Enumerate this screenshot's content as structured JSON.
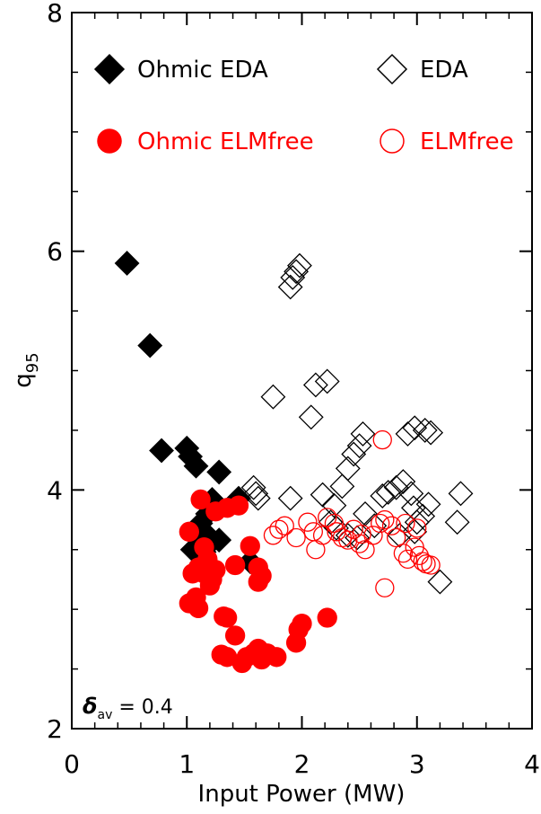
{
  "chart_data": {
    "type": "scatter",
    "title": "",
    "xlabel": "Input Power (MW)",
    "ylabel": "q",
    "ylabel_subscript": "95",
    "xlim": [
      0,
      4
    ],
    "ylim": [
      2,
      8
    ],
    "xticks": [
      0,
      1,
      2,
      3,
      4
    ],
    "yticks": [
      2,
      4,
      6,
      8
    ],
    "x_tick_labels": [
      "0",
      "1",
      "2",
      "3",
      "4"
    ],
    "y_tick_labels": [
      "2",
      "4",
      "6",
      "8"
    ],
    "grid": false,
    "legend_position": "top",
    "annotation": {
      "symbol": "δ",
      "subscript": "av",
      "text": " = 0.4"
    },
    "series": [
      {
        "name": "Ohmic EDA",
        "marker": "diamond",
        "filled": true,
        "color": "#000000",
        "points": [
          [
            0.48,
            5.9
          ],
          [
            0.68,
            5.21
          ],
          [
            0.78,
            4.33
          ],
          [
            1.0,
            4.35
          ],
          [
            1.03,
            4.28
          ],
          [
            1.08,
            4.2
          ],
          [
            1.28,
            4.15
          ],
          [
            1.45,
            3.93
          ],
          [
            1.22,
            3.92
          ],
          [
            1.18,
            3.8
          ],
          [
            1.12,
            3.72
          ],
          [
            1.15,
            3.65
          ],
          [
            1.1,
            3.6
          ],
          [
            1.2,
            3.55
          ],
          [
            1.28,
            3.58
          ],
          [
            1.05,
            3.5
          ],
          [
            1.15,
            3.48
          ],
          [
            1.55,
            3.4
          ]
        ]
      },
      {
        "name": "EDA",
        "marker": "diamond",
        "filled": false,
        "color": "#000000",
        "points": [
          [
            1.9,
            5.7
          ],
          [
            1.92,
            5.78
          ],
          [
            1.95,
            5.83
          ],
          [
            1.98,
            5.88
          ],
          [
            1.75,
            4.78
          ],
          [
            2.08,
            4.61
          ],
          [
            2.12,
            4.88
          ],
          [
            2.22,
            4.91
          ],
          [
            1.58,
            4.02
          ],
          [
            1.6,
            3.97
          ],
          [
            1.62,
            3.93
          ],
          [
            1.9,
            3.93
          ],
          [
            2.18,
            3.96
          ],
          [
            2.28,
            3.87
          ],
          [
            2.35,
            4.03
          ],
          [
            2.4,
            4.18
          ],
          [
            2.45,
            4.3
          ],
          [
            2.5,
            4.37
          ],
          [
            2.53,
            4.47
          ],
          [
            2.55,
            3.8
          ],
          [
            2.63,
            3.7
          ],
          [
            2.7,
            3.95
          ],
          [
            2.75,
            3.98
          ],
          [
            2.82,
            4.02
          ],
          [
            2.88,
            4.07
          ],
          [
            2.95,
            3.97
          ],
          [
            2.97,
            3.85
          ],
          [
            3.0,
            3.73
          ],
          [
            3.05,
            3.78
          ],
          [
            3.1,
            3.88
          ],
          [
            2.92,
            4.47
          ],
          [
            2.98,
            4.52
          ],
          [
            3.07,
            4.5
          ],
          [
            3.12,
            4.48
          ],
          [
            2.25,
            3.73
          ],
          [
            2.3,
            3.68
          ],
          [
            2.4,
            3.62
          ],
          [
            2.48,
            3.6
          ],
          [
            2.85,
            3.62
          ],
          [
            2.98,
            3.65
          ],
          [
            3.2,
            3.23
          ],
          [
            3.38,
            3.97
          ],
          [
            3.35,
            3.73
          ]
        ]
      },
      {
        "name": "Ohmic ELMfree",
        "marker": "circle",
        "filled": true,
        "color": "#ff0000",
        "points": [
          [
            1.02,
            3.65
          ],
          [
            1.12,
            3.92
          ],
          [
            1.25,
            3.82
          ],
          [
            1.35,
            3.85
          ],
          [
            1.45,
            3.87
          ],
          [
            1.55,
            3.53
          ],
          [
            1.62,
            3.35
          ],
          [
            1.62,
            3.23
          ],
          [
            1.65,
            3.28
          ],
          [
            1.15,
            3.52
          ],
          [
            1.18,
            3.42
          ],
          [
            1.1,
            3.35
          ],
          [
            1.15,
            3.3
          ],
          [
            1.22,
            3.25
          ],
          [
            1.25,
            3.33
          ],
          [
            1.2,
            3.2
          ],
          [
            1.05,
            3.3
          ],
          [
            1.02,
            3.05
          ],
          [
            1.08,
            3.1
          ],
          [
            1.1,
            3.01
          ],
          [
            1.35,
            2.93
          ],
          [
            1.32,
            2.94
          ],
          [
            1.42,
            2.78
          ],
          [
            1.3,
            2.62
          ],
          [
            1.35,
            2.6
          ],
          [
            1.48,
            2.55
          ],
          [
            1.52,
            2.6
          ],
          [
            1.58,
            2.63
          ],
          [
            1.62,
            2.67
          ],
          [
            1.65,
            2.58
          ],
          [
            1.7,
            2.63
          ],
          [
            1.78,
            2.6
          ],
          [
            1.97,
            2.83
          ],
          [
            2.0,
            2.88
          ],
          [
            2.22,
            2.93
          ],
          [
            1.95,
            2.72
          ],
          [
            1.42,
            3.37
          ]
        ]
      },
      {
        "name": "ELMfree",
        "marker": "circle",
        "filled": false,
        "color": "#ff0000",
        "points": [
          [
            1.75,
            3.62
          ],
          [
            1.8,
            3.67
          ],
          [
            1.85,
            3.7
          ],
          [
            1.95,
            3.6
          ],
          [
            2.05,
            3.73
          ],
          [
            2.1,
            3.65
          ],
          [
            2.12,
            3.5
          ],
          [
            2.18,
            3.62
          ],
          [
            2.22,
            3.77
          ],
          [
            2.28,
            3.72
          ],
          [
            2.3,
            3.65
          ],
          [
            2.35,
            3.6
          ],
          [
            2.4,
            3.58
          ],
          [
            2.45,
            3.67
          ],
          [
            2.5,
            3.55
          ],
          [
            2.55,
            3.5
          ],
          [
            2.62,
            3.62
          ],
          [
            2.68,
            3.72
          ],
          [
            2.72,
            3.75
          ],
          [
            2.78,
            3.7
          ],
          [
            2.82,
            3.6
          ],
          [
            2.88,
            3.47
          ],
          [
            2.92,
            3.42
          ],
          [
            2.98,
            3.52
          ],
          [
            3.02,
            3.45
          ],
          [
            3.05,
            3.4
          ],
          [
            3.08,
            3.38
          ],
          [
            3.12,
            3.37
          ],
          [
            3.0,
            3.68
          ],
          [
            2.7,
            4.42
          ],
          [
            2.72,
            3.18
          ],
          [
            2.52,
            3.63
          ],
          [
            2.9,
            3.72
          ]
        ]
      }
    ]
  }
}
